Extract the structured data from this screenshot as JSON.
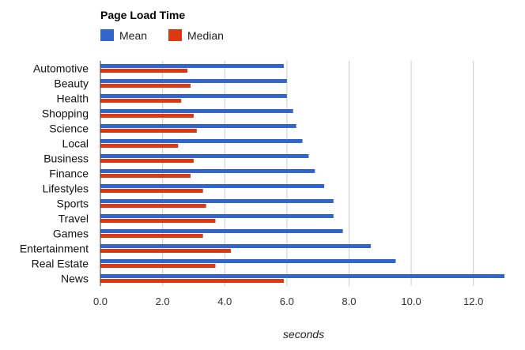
{
  "chart_data": {
    "type": "bar",
    "orientation": "horizontal",
    "title": "Page Load Time",
    "xlabel": "seconds",
    "ylabel": "",
    "xlim": [
      0,
      13
    ],
    "xticks": [
      "0.0",
      "2.0",
      "4.0",
      "6.0",
      "8.0",
      "10.0",
      "12.0"
    ],
    "grid": true,
    "legend_position": "top-left",
    "categories": [
      "Automotive",
      "Beauty",
      "Health",
      "Shopping",
      "Science",
      "Local",
      "Business",
      "Finance",
      "Lifestyles",
      "Sports",
      "Travel",
      "Games",
      "Entertainment",
      "Real Estate",
      "News"
    ],
    "series": [
      {
        "name": "Mean",
        "color": "#3366cc",
        "values": [
          5.9,
          6.0,
          6.0,
          6.2,
          6.3,
          6.5,
          6.7,
          6.9,
          7.2,
          7.5,
          7.5,
          7.8,
          8.7,
          9.5,
          13.0
        ]
      },
      {
        "name": "Median",
        "color": "#dc3912",
        "values": [
          2.8,
          2.9,
          2.6,
          3.0,
          3.1,
          2.5,
          3.0,
          2.9,
          3.3,
          3.4,
          3.7,
          3.3,
          4.2,
          3.7,
          5.9
        ]
      }
    ]
  }
}
